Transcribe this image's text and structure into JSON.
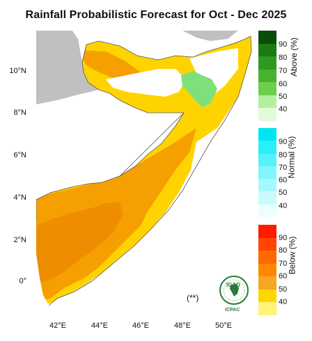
{
  "title": "Rainfall Probabilistic Forecast for Oct - Dec 2025",
  "lat_labels": [
    "10°N",
    "8°N",
    "6°N",
    "4°N",
    "2°N",
    "0°"
  ],
  "lon_labels": [
    "42°E",
    "44°E",
    "46°E",
    "48°E",
    "50°E"
  ],
  "note": "(**)",
  "logo": {
    "top": "IGAD",
    "bottom": "ICPAC"
  },
  "colorbars": {
    "above": {
      "title": "Above (%)",
      "ticks": [
        "90",
        "80",
        "70",
        "60",
        "50",
        "40"
      ],
      "colors": [
        "#0a4d0a",
        "#1a7a14",
        "#2e9a1f",
        "#47b22f",
        "#6fcf4a",
        "#b2f0a0",
        "#e3fbdd"
      ]
    },
    "normal": {
      "title": "Normal (%)",
      "ticks": [
        "90",
        "80",
        "70",
        "60",
        "50",
        "40"
      ],
      "colors": [
        "#00e5f2",
        "#2aeef8",
        "#55f2fa",
        "#80f6fb",
        "#a6f8fc",
        "#c9fbfd",
        "#ecfefe"
      ]
    },
    "below": {
      "title": "Below (%)",
      "ticks": [
        "90",
        "80",
        "70",
        "60",
        "50",
        "40"
      ],
      "colors": [
        "#ff1a00",
        "#ff4500",
        "#ff6a00",
        "#ff8800",
        "#f5a623",
        "#ffd700",
        "#fff37a"
      ]
    }
  },
  "map_colors": {
    "outside": "#c0c0c0",
    "below_50": "#ffd300",
    "below_60": "#f5a000",
    "below_70": "#ef8d00",
    "above_50": "#7ee07a",
    "no_signal": "#ffffff"
  }
}
